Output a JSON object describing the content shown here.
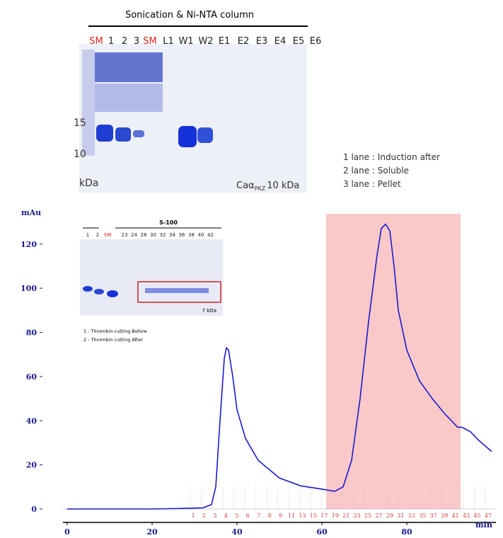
{
  "gel": {
    "title": "Sonication & Ni-NTA column",
    "lanes": [
      "SM",
      "1",
      "2",
      "3",
      "SM",
      "L1",
      "W1",
      "W2",
      "E1",
      "E2",
      "E3",
      "E4",
      "E5",
      "E6"
    ],
    "markers": [
      "15",
      "10"
    ],
    "unit": "kDa",
    "protein": "Caα",
    "protein_sub": "PKZ",
    "protein_size": "10 kDa",
    "legend": [
      "1 lane : Induction after",
      "2 lane : Soluble",
      "3 lane : Pellet"
    ]
  },
  "inset": {
    "title": "S-100",
    "lanes": [
      "1",
      "2",
      "SM",
      "23",
      "24",
      "28",
      "30",
      "32",
      "34",
      "36",
      "38",
      "40",
      "42"
    ],
    "size": "7 kDa",
    "notes": [
      "1 : Thrombin cutting Before",
      "2 : Thrombin cutting After"
    ]
  },
  "chart_data": {
    "type": "line",
    "ylabel": "mAu",
    "xlabel": "min",
    "color": "#1a1acc",
    "x": [
      0,
      10,
      20,
      28,
      32,
      34,
      35,
      36,
      37,
      37.5,
      38,
      39,
      40,
      42,
      45,
      50,
      55,
      60,
      63,
      65,
      67,
      69,
      71,
      73,
      74,
      75,
      76,
      77,
      78,
      80,
      83,
      86,
      89,
      92,
      93,
      95,
      97,
      100
    ],
    "y": [
      0,
      0,
      0,
      0.3,
      0.5,
      2,
      10,
      40,
      68,
      73,
      72,
      60,
      45,
      32,
      22,
      14,
      10.5,
      9,
      8,
      10,
      22,
      50,
      85,
      115,
      127,
      129,
      126,
      110,
      90,
      72,
      58,
      50,
      43,
      37,
      37,
      35,
      31,
      26
    ],
    "xlim": [
      -1,
      101
    ],
    "ylim": [
      0,
      135
    ],
    "xticks": [
      0,
      20,
      40,
      60,
      80
    ],
    "yticks": [
      0,
      20,
      40,
      60,
      80,
      100,
      120
    ],
    "highlight": {
      "range": [
        61,
        92.7
      ],
      "color": "#f9c9c9"
    },
    "fractions": [
      "1",
      "2",
      "3",
      "4",
      "5",
      "6",
      "7",
      "8",
      "9",
      "11",
      "13",
      "15",
      "17",
      "19",
      "21",
      "23",
      "25",
      "27",
      "29",
      "31",
      "33",
      "35",
      "37",
      "39",
      "41",
      "43",
      "45",
      "47"
    ]
  }
}
